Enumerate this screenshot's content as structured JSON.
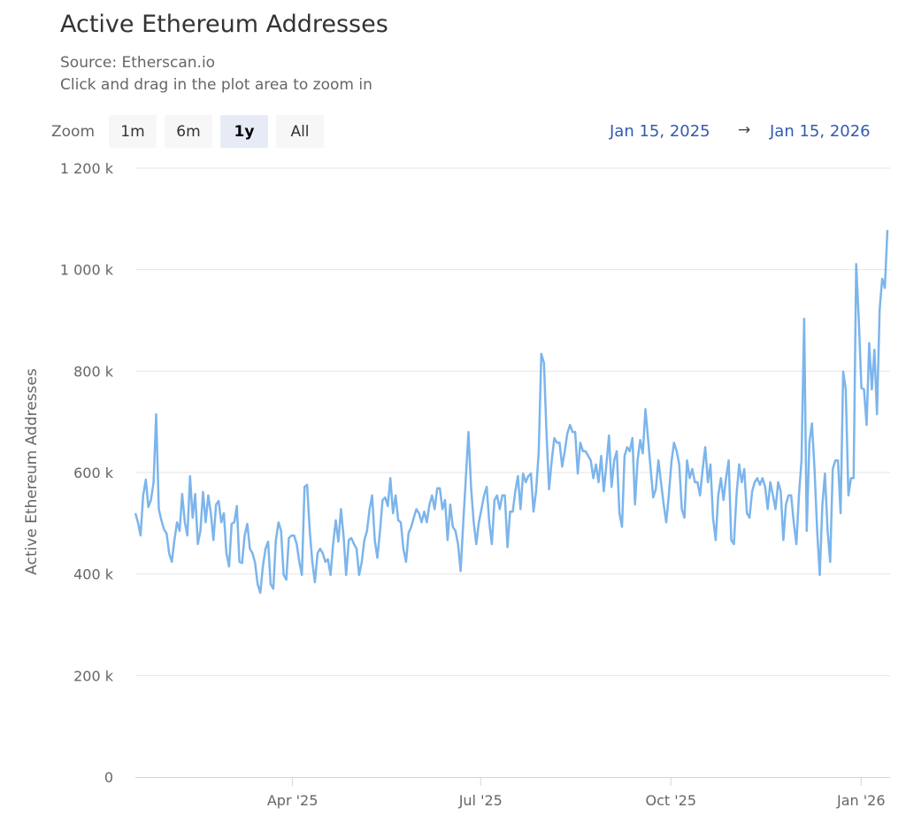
{
  "chart_data": {
    "type": "line",
    "title": "Active Ethereum Addresses",
    "subtitle": [
      "Source: Etherscan.io",
      "Click and drag in the plot area to zoom in"
    ],
    "ylabel": "Active Ethereum Addresses",
    "xlabel": "",
    "x_range": [
      "2025-01-15",
      "2026-01-15"
    ],
    "ylim": [
      0,
      1200
    ],
    "value_unit": "thousands",
    "y_ticks": [
      {
        "value": 0,
        "label": "0"
      },
      {
        "value": 200,
        "label": "200 k"
      },
      {
        "value": 400,
        "label": "400 k"
      },
      {
        "value": 600,
        "label": "600 k"
      },
      {
        "value": 800,
        "label": "800 k"
      },
      {
        "value": 1000,
        "label": "1 000 k"
      },
      {
        "value": 1200,
        "label": "1 200 k"
      }
    ],
    "x_ticks": [
      {
        "date": "2025-04-01",
        "label": "Apr '25"
      },
      {
        "date": "2025-07-01",
        "label": "Jul '25"
      },
      {
        "date": "2025-10-01",
        "label": "Oct '25"
      },
      {
        "date": "2026-01-01",
        "label": "Jan '26"
      }
    ],
    "grid": true,
    "legend": "none",
    "line_color": "#7cb5ec",
    "values": [
      520,
      502,
      476,
      555,
      586,
      532,
      546,
      581,
      715,
      528,
      506,
      488,
      480,
      441,
      424,
      467,
      502,
      485,
      558,
      502,
      476,
      593,
      511,
      558,
      459,
      485,
      562,
      502,
      555,
      520,
      467,
      537,
      544,
      502,
      520,
      441,
      415,
      499,
      502,
      534,
      424,
      422,
      476,
      499,
      450,
      441,
      422,
      380,
      363,
      415,
      450,
      464,
      380,
      371,
      467,
      502,
      485,
      398,
      389,
      471,
      476,
      476,
      459,
      424,
      398,
      572,
      576,
      485,
      424,
      384,
      441,
      450,
      441,
      424,
      429,
      398,
      459,
      506,
      464,
      528,
      476,
      398,
      467,
      471,
      459,
      450,
      398,
      424,
      467,
      485,
      528,
      555,
      467,
      432,
      485,
      546,
      551,
      534,
      589,
      520,
      555,
      506,
      502,
      450,
      424,
      481,
      493,
      511,
      528,
      520,
      502,
      523,
      502,
      537,
      555,
      528,
      569,
      569,
      528,
      546,
      467,
      537,
      493,
      485,
      459,
      406,
      502,
      589,
      680,
      572,
      502,
      459,
      502,
      528,
      555,
      572,
      502,
      459,
      546,
      555,
      528,
      555,
      555,
      453,
      523,
      523,
      563,
      593,
      528,
      598,
      581,
      593,
      598,
      523,
      563,
      642,
      834,
      816,
      677,
      567,
      624,
      668,
      659,
      659,
      612,
      642,
      677,
      694,
      680,
      680,
      598,
      659,
      642,
      642,
      633,
      624,
      589,
      616,
      581,
      633,
      563,
      616,
      673,
      572,
      624,
      642,
      520,
      493,
      633,
      650,
      642,
      668,
      537,
      624,
      664,
      638,
      725,
      668,
      607,
      551,
      567,
      624,
      581,
      537,
      502,
      555,
      621,
      659,
      642,
      616,
      528,
      511,
      624,
      589,
      607,
      581,
      581,
      555,
      607,
      650,
      581,
      616,
      511,
      467,
      555,
      589,
      546,
      589,
      624,
      467,
      459,
      555,
      616,
      581,
      607,
      520,
      511,
      563,
      581,
      589,
      576,
      589,
      572,
      528,
      581,
      555,
      528,
      581,
      563,
      467,
      537,
      555,
      555,
      502,
      459,
      555,
      624,
      903,
      485,
      659,
      697,
      607,
      485,
      398,
      537,
      598,
      485,
      424,
      607,
      624,
      624,
      520,
      799,
      764,
      555,
      589,
      589,
      1011,
      903,
      767,
      764,
      694,
      855,
      764,
      842,
      715,
      921,
      982,
      964,
      1078
    ]
  },
  "range_selector": {
    "zoom_label": "Zoom",
    "buttons": [
      "1m",
      "6m",
      "1y",
      "All"
    ],
    "selected": "1y",
    "from": "Jan 15, 2025",
    "arrow": "→",
    "to": "Jan 15, 2026",
    "accent_color": "#335cad"
  }
}
